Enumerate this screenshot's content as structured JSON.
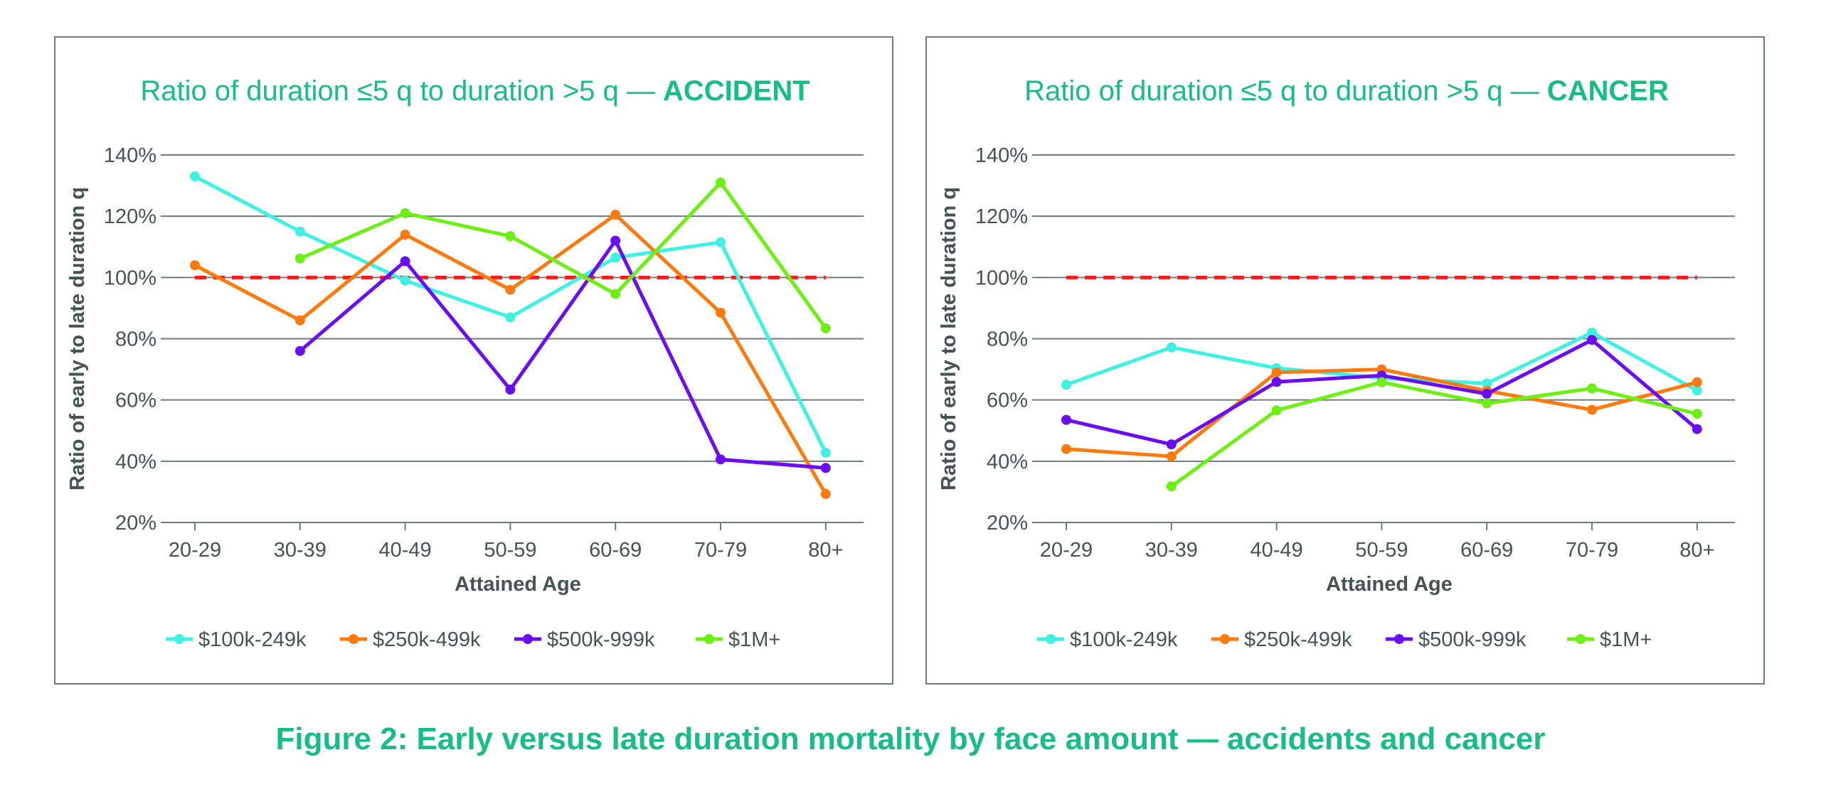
{
  "caption": "Figure 2: Early versus late duration mortality by face amount — accidents and cancer",
  "series_meta": [
    {
      "name": "$100k-249k",
      "color": "#3ef2e2"
    },
    {
      "name": "$250k-499k",
      "color": "#ff7a0c"
    },
    {
      "name": "$500k-999k",
      "color": "#6a0cf5"
    },
    {
      "name": "$1M+",
      "color": "#6cf012"
    }
  ],
  "reference_line": {
    "value": 100,
    "color": "#ff1a1a"
  },
  "chart_data": [
    {
      "type": "line",
      "title": "Ratio of duration ≤5 q to duration >5 q — ",
      "title_emphasis": "ACCIDENT",
      "xlabel": "Attained Age",
      "ylabel": "Ratio of early to late duration q",
      "categories": [
        "20-29",
        "30-39",
        "40-49",
        "50-59",
        "60-69",
        "70-79",
        "80+"
      ],
      "ylim": [
        20,
        140
      ],
      "yticks": [
        "20%",
        "40%",
        "60%",
        "80%",
        "100%",
        "120%",
        "140%"
      ],
      "ytick_values": [
        20,
        40,
        60,
        80,
        100,
        120,
        140
      ],
      "grid": true,
      "legend_position": "bottom",
      "series": [
        {
          "name": "$100k-249k",
          "values": [
            133,
            115,
            99,
            87,
            106.5,
            111.5,
            42.8
          ]
        },
        {
          "name": "$250k-499k",
          "values": [
            104,
            86,
            114,
            96,
            120.5,
            88.5,
            29.3
          ]
        },
        {
          "name": "$500k-999k",
          "values": [
            null,
            76,
            105.3,
            63.4,
            112,
            40.6,
            37.8
          ]
        },
        {
          "name": "$1M+",
          "values": [
            null,
            106.2,
            121,
            113.5,
            94.6,
            131,
            83.4
          ]
        }
      ]
    },
    {
      "type": "line",
      "title": "Ratio of duration ≤5 q to duration >5 q — ",
      "title_emphasis": "CANCER",
      "xlabel": "Attained Age",
      "ylabel": "Ratio of early to late duration q",
      "categories": [
        "20-29",
        "30-39",
        "40-49",
        "50-59",
        "60-69",
        "70-79",
        "80+"
      ],
      "ylim": [
        20,
        140
      ],
      "yticks": [
        "20%",
        "40%",
        "60%",
        "80%",
        "100%",
        "120%",
        "140%"
      ],
      "ytick_values": [
        20,
        40,
        60,
        80,
        100,
        120,
        140
      ],
      "grid": true,
      "legend_position": "bottom",
      "series": [
        {
          "name": "$100k-249k",
          "values": [
            65,
            77.2,
            70.4,
            67.2,
            65.4,
            82,
            63.1
          ]
        },
        {
          "name": "$250k-499k",
          "values": [
            44,
            41.6,
            69,
            70,
            63,
            56.8,
            65.8
          ]
        },
        {
          "name": "$500k-999k",
          "values": [
            53.5,
            45.5,
            65.9,
            68,
            62,
            79.6,
            50.5
          ]
        },
        {
          "name": "$1M+",
          "values": [
            null,
            31.8,
            56.6,
            65.8,
            58.9,
            63.8,
            55.5
          ]
        }
      ]
    }
  ]
}
